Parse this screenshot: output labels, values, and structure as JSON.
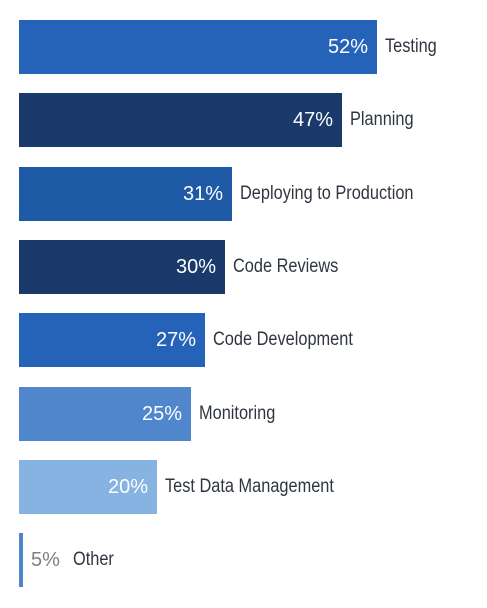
{
  "chart_data": {
    "type": "bar",
    "orientation": "horizontal",
    "categories": [
      "Testing",
      "Planning",
      "Deploying to Production",
      "Code Reviews",
      "Code Development",
      "Monitoring",
      "Test Data Management",
      "Other"
    ],
    "values": [
      52,
      47,
      31,
      30,
      27,
      25,
      20,
      5
    ],
    "value_labels": [
      "52%",
      "47%",
      "31%",
      "30%",
      "27%",
      "25%",
      "20%",
      "5%"
    ],
    "colors": [
      "#2563b8",
      "#1a3a6b",
      "#1f5aa6",
      "#1a3a6b",
      "#2563b8",
      "#4f86cc",
      "#86b3e2",
      "#4f86cc"
    ],
    "title": "",
    "xlabel": "",
    "ylabel": "",
    "xlim": [
      0,
      55
    ],
    "grid": false,
    "legend": "none"
  }
}
